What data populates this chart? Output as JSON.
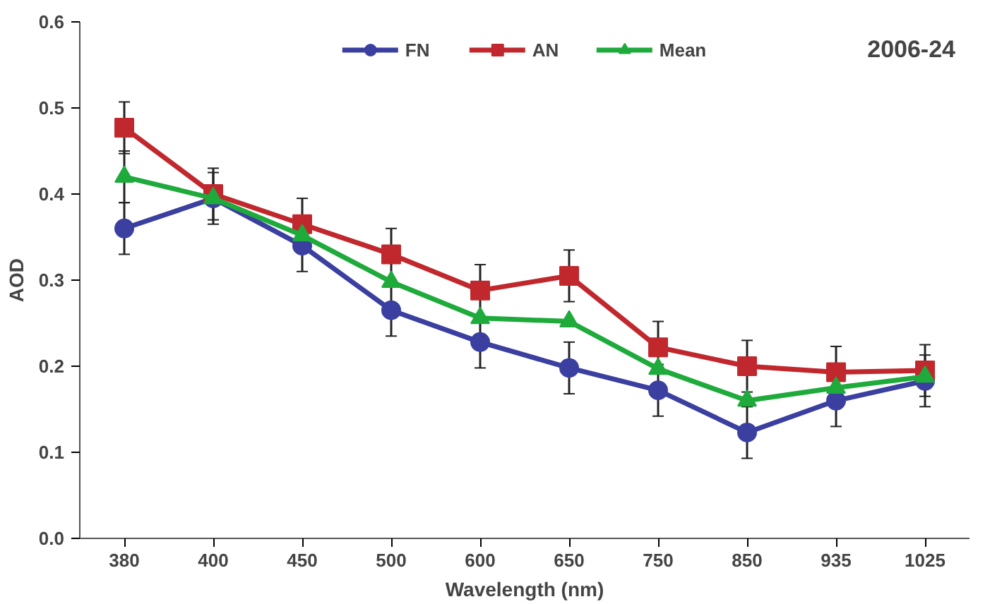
{
  "chart_data": {
    "type": "line",
    "xlabel": "Wavelength (nm)",
    "ylabel": "AOD",
    "categories": [
      "380",
      "400",
      "450",
      "500",
      "600",
      "650",
      "750",
      "850",
      "935",
      "1025"
    ],
    "ylim": [
      0,
      0.6
    ],
    "yticks": [
      {
        "value": 0,
        "label": "0.0"
      },
      0.1,
      0.2,
      0.3,
      0.4,
      0.5,
      0.6
    ],
    "grid": false,
    "legend": "top",
    "annotations": [
      "2006-24"
    ],
    "series": [
      {
        "name": "FN",
        "color": "#3a3fa0",
        "marker": "circle",
        "values": [
          0.36,
          0.395,
          0.34,
          0.265,
          0.228,
          0.198,
          0.172,
          0.123,
          0.16,
          0.183
        ],
        "errors": [
          0.03,
          0.03,
          0.03,
          0.03,
          0.03,
          0.03,
          0.03,
          0.03,
          0.03,
          0.03
        ]
      },
      {
        "name": "AN",
        "color": "#c0282d",
        "marker": "square",
        "values": [
          0.477,
          0.4,
          0.365,
          0.33,
          0.288,
          0.305,
          0.222,
          0.2,
          0.193,
          0.195
        ],
        "errors": [
          0.03,
          0.03,
          0.03,
          0.03,
          0.03,
          0.03,
          0.03,
          0.03,
          0.03,
          0.03
        ]
      },
      {
        "name": "Mean",
        "color": "#1faa3c",
        "marker": "triangle",
        "values": [
          0.42,
          0.395,
          0.352,
          0.298,
          0.256,
          0.252,
          0.197,
          0.16,
          0.175,
          0.188
        ],
        "errors": [
          0.03,
          null,
          null,
          null,
          null,
          null,
          null,
          null,
          null,
          null
        ]
      }
    ]
  }
}
